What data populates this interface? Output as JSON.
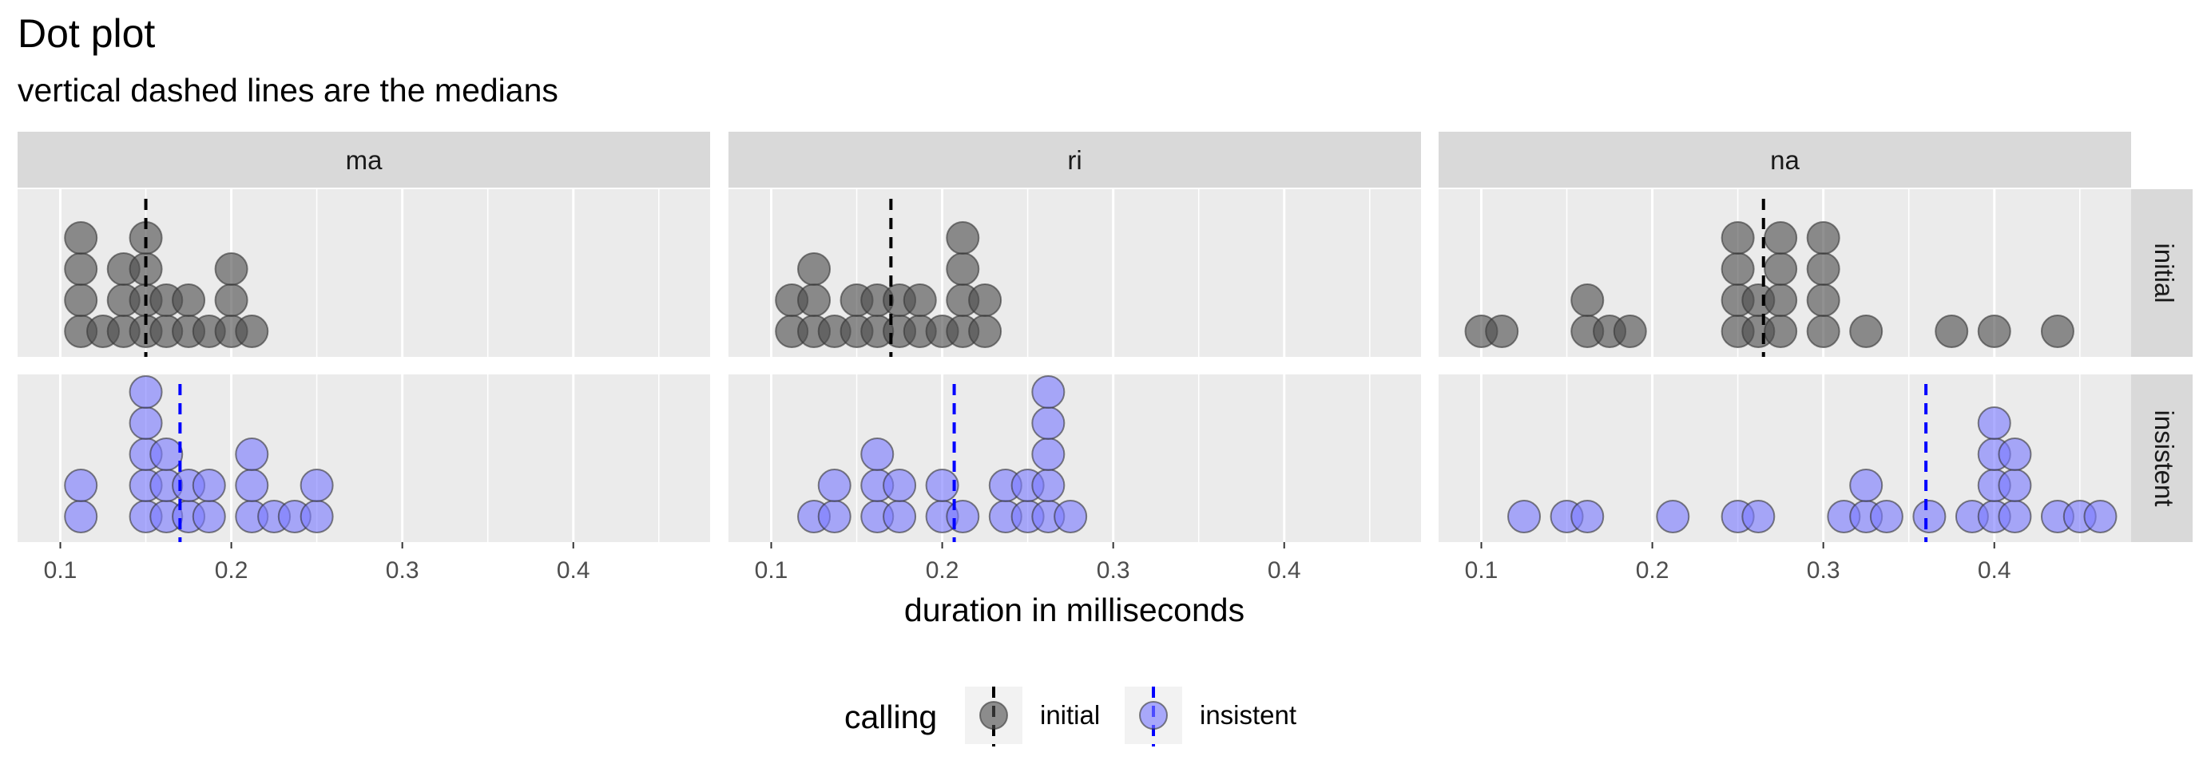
{
  "chart_data": {
    "type": "dotplot",
    "title": "Dot plot",
    "subtitle": "vertical dashed lines are the medians",
    "xlabel": "duration in milliseconds",
    "xlim": [
      0.075,
      0.48
    ],
    "x_ticks": [
      0.1,
      0.2,
      0.3,
      0.4
    ],
    "x_tick_labels": [
      "0.1",
      "0.2",
      "0.3",
      "0.4"
    ],
    "facet_columns": [
      "ma",
      "ri",
      "na"
    ],
    "facet_rows": [
      "initial",
      "insistent"
    ],
    "grid": true,
    "legend": {
      "title": "calling",
      "position": "bottom",
      "entries": [
        "initial",
        "insistent"
      ]
    },
    "colors": {
      "initial": "#4d4d4d",
      "insistent": "#7b7bff",
      "median_initial": "#000000",
      "median_insistent": "#0000ff",
      "panel_bg": "#ebebeb",
      "strip_bg": "#d9d9d9",
      "grid": "#ffffff"
    },
    "panels": [
      {
        "col": "ma",
        "row": "initial",
        "median": 0.15,
        "dots": [
          [
            0.112,
            4
          ],
          [
            0.137,
            3
          ],
          [
            0.15,
            4
          ],
          [
            0.2,
            3
          ]
        ],
        "stacks": [
          [
            0.112,
            4
          ],
          [
            0.125,
            1
          ],
          [
            0.137,
            3
          ],
          [
            0.15,
            4
          ],
          [
            0.162,
            2
          ],
          [
            0.175,
            2
          ],
          [
            0.187,
            1
          ],
          [
            0.2,
            3
          ],
          [
            0.212,
            1
          ]
        ]
      },
      {
        "col": "ma",
        "row": "insistent",
        "median": 0.17,
        "stacks": [
          [
            0.112,
            2
          ],
          [
            0.15,
            5
          ],
          [
            0.162,
            3
          ],
          [
            0.175,
            2
          ],
          [
            0.187,
            2
          ],
          [
            0.212,
            3
          ],
          [
            0.225,
            1
          ],
          [
            0.237,
            1
          ],
          [
            0.25,
            2
          ]
        ]
      },
      {
        "col": "ri",
        "row": "initial",
        "median": 0.17,
        "stacks": [
          [
            0.112,
            2
          ],
          [
            0.125,
            3
          ],
          [
            0.137,
            1
          ],
          [
            0.15,
            2
          ],
          [
            0.162,
            2
          ],
          [
            0.175,
            2
          ],
          [
            0.187,
            2
          ],
          [
            0.2,
            1
          ],
          [
            0.212,
            4
          ],
          [
            0.225,
            2
          ]
        ]
      },
      {
        "col": "ri",
        "row": "insistent",
        "median": 0.207,
        "stacks": [
          [
            0.125,
            1
          ],
          [
            0.137,
            2
          ],
          [
            0.162,
            3
          ],
          [
            0.175,
            2
          ],
          [
            0.2,
            2
          ],
          [
            0.212,
            1
          ],
          [
            0.237,
            2
          ],
          [
            0.25,
            2
          ],
          [
            0.262,
            5
          ],
          [
            0.275,
            1
          ]
        ]
      },
      {
        "col": "na",
        "row": "initial",
        "median": 0.265,
        "stacks": [
          [
            0.1,
            1
          ],
          [
            0.112,
            1
          ],
          [
            0.162,
            2
          ],
          [
            0.175,
            1
          ],
          [
            0.187,
            1
          ],
          [
            0.25,
            4
          ],
          [
            0.262,
            2
          ],
          [
            0.275,
            4
          ],
          [
            0.3,
            4
          ],
          [
            0.325,
            1
          ],
          [
            0.375,
            1
          ],
          [
            0.4,
            1
          ],
          [
            0.437,
            1
          ]
        ]
      },
      {
        "col": "na",
        "row": "insistent",
        "median": 0.36,
        "stacks": [
          [
            0.125,
            1
          ],
          [
            0.15,
            1
          ],
          [
            0.162,
            1
          ],
          [
            0.212,
            1
          ],
          [
            0.25,
            1
          ],
          [
            0.262,
            1
          ],
          [
            0.312,
            1
          ],
          [
            0.325,
            2
          ],
          [
            0.337,
            1
          ],
          [
            0.362,
            1
          ],
          [
            0.387,
            1
          ],
          [
            0.4,
            4
          ],
          [
            0.412,
            3
          ],
          [
            0.437,
            1
          ],
          [
            0.45,
            1
          ],
          [
            0.462,
            1
          ]
        ]
      }
    ]
  }
}
